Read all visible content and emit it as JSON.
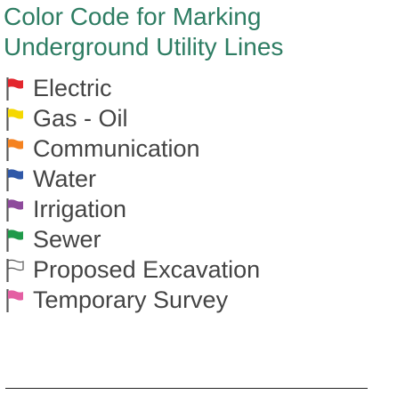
{
  "title": {
    "line1": "Color Code for Marking",
    "line2": "Underground Utility Lines"
  },
  "legend": {
    "items": [
      {
        "label": "Electric",
        "color": "#e3262d",
        "outline_only": false,
        "icon": "flag-icon"
      },
      {
        "label": "Gas - Oil",
        "color": "#f5d800",
        "outline_only": false,
        "icon": "flag-icon"
      },
      {
        "label": "Communication",
        "color": "#f58220",
        "outline_only": false,
        "icon": "flag-icon"
      },
      {
        "label": "Water",
        "color": "#2f58a8",
        "outline_only": false,
        "icon": "flag-icon"
      },
      {
        "label": "Irrigation",
        "color": "#8e4a9c",
        "outline_only": false,
        "icon": "flag-icon"
      },
      {
        "label": "Sewer",
        "color": "#1f9a4a",
        "outline_only": false,
        "icon": "flag-icon"
      },
      {
        "label": "Proposed Excavation",
        "color": "#555555",
        "outline_only": true,
        "icon": "flag-icon"
      },
      {
        "label": "Temporary Survey",
        "color": "#e45fa3",
        "outline_only": false,
        "icon": "flag-icon"
      }
    ]
  },
  "colors": {
    "title": "#2e7d63",
    "text": "#444444",
    "staff": "#5a5a5a"
  }
}
